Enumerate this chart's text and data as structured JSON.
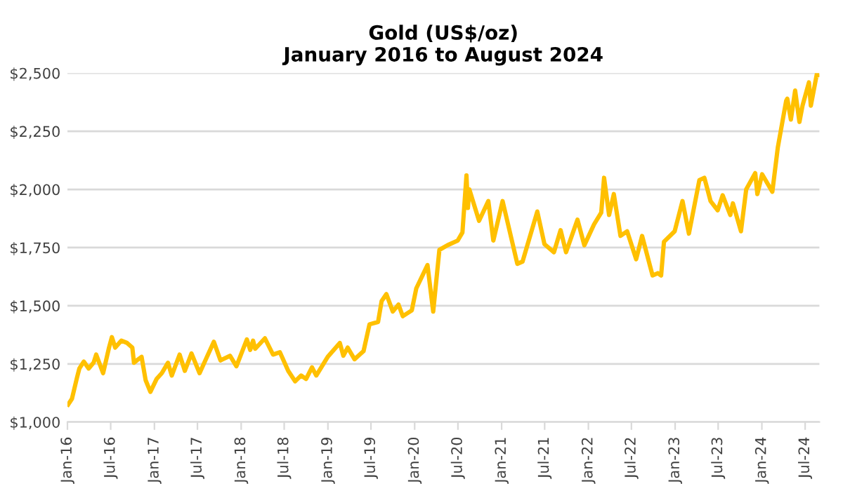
{
  "chart_data": {
    "type": "line",
    "title": "Gold (US$/oz)\nJanuary 2016 to August 2024",
    "x": [
      "2016-01-04",
      "2016-01-20",
      "2016-02-10",
      "2016-02-20",
      "2016-03-10",
      "2016-03-30",
      "2016-04-20",
      "2016-05-01",
      "2016-05-30",
      "2016-06-24",
      "2016-07-06",
      "2016-07-20",
      "2016-08-15",
      "2016-09-08",
      "2016-09-30",
      "2016-10-07",
      "2016-10-25",
      "2016-11-08",
      "2016-11-25",
      "2016-12-15",
      "2017-01-10",
      "2017-02-01",
      "2017-02-27",
      "2017-03-15",
      "2017-04-17",
      "2017-05-09",
      "2017-06-06",
      "2017-07-10",
      "2017-08-10",
      "2017-09-08",
      "2017-10-06",
      "2017-11-15",
      "2017-12-12",
      "2018-01-25",
      "2018-02-08",
      "2018-02-20",
      "2018-03-01",
      "2018-04-11",
      "2018-05-15",
      "2018-06-13",
      "2018-07-18",
      "2018-08-16",
      "2018-09-10",
      "2018-10-01",
      "2018-10-26",
      "2018-11-13",
      "2018-12-31",
      "2019-02-20",
      "2019-03-07",
      "2019-03-25",
      "2019-04-23",
      "2019-05-31",
      "2019-06-25",
      "2019-07-31",
      "2019-08-15",
      "2019-09-04",
      "2019-10-01",
      "2019-10-25",
      "2019-11-12",
      "2019-12-20",
      "2020-01-08",
      "2020-02-24",
      "2020-03-19",
      "2020-04-14",
      "2020-05-18",
      "2020-06-30",
      "2020-07-20",
      "2020-08-06",
      "2020-08-12",
      "2020-08-18",
      "2020-09-28",
      "2020-11-06",
      "2020-11-27",
      "2021-01-05",
      "2021-03-08",
      "2021-03-30",
      "2021-05-31",
      "2021-06-30",
      "2021-08-09",
      "2021-09-06",
      "2021-09-29",
      "2021-11-16",
      "2021-12-15",
      "2022-01-25",
      "2022-02-24",
      "2022-03-08",
      "2022-03-29",
      "2022-04-18",
      "2022-05-16",
      "2022-06-13",
      "2022-07-21",
      "2022-08-15",
      "2022-09-28",
      "2022-10-20",
      "2022-11-03",
      "2022-11-15",
      "2022-12-30",
      "2023-02-01",
      "2023-02-28",
      "2023-04-13",
      "2023-05-04",
      "2023-05-30",
      "2023-06-29",
      "2023-07-20",
      "2023-08-21",
      "2023-09-01",
      "2023-10-05",
      "2023-10-27",
      "2023-12-04",
      "2023-12-13",
      "2024-01-02",
      "2024-02-14",
      "2024-03-08",
      "2024-04-12",
      "2024-04-17",
      "2024-05-02",
      "2024-05-20",
      "2024-06-07",
      "2024-06-20",
      "2024-07-17",
      "2024-07-25",
      "2024-08-20",
      "2024-08-23"
    ],
    "series": [
      {
        "color": "#ffc000",
        "values": [
          1075,
          1100,
          1190,
          1230,
          1260,
          1230,
          1255,
          1290,
          1210,
          1320,
          1365,
          1320,
          1350,
          1340,
          1320,
          1255,
          1270,
          1280,
          1180,
          1130,
          1185,
          1210,
          1255,
          1200,
          1290,
          1220,
          1295,
          1210,
          1280,
          1345,
          1265,
          1285,
          1240,
          1355,
          1310,
          1350,
          1315,
          1360,
          1290,
          1300,
          1220,
          1175,
          1200,
          1185,
          1235,
          1200,
          1280,
          1340,
          1285,
          1320,
          1270,
          1305,
          1420,
          1430,
          1520,
          1550,
          1475,
          1505,
          1455,
          1480,
          1575,
          1675,
          1475,
          1740,
          1760,
          1780,
          1815,
          2060,
          1920,
          2000,
          1865,
          1950,
          1780,
          1950,
          1680,
          1690,
          1905,
          1765,
          1730,
          1825,
          1730,
          1870,
          1760,
          1850,
          1900,
          2050,
          1890,
          1980,
          1800,
          1820,
          1700,
          1800,
          1630,
          1640,
          1630,
          1775,
          1820,
          1950,
          1810,
          2040,
          2050,
          1950,
          1910,
          1975,
          1890,
          1940,
          1820,
          2000,
          2070,
          1980,
          2065,
          1990,
          2180,
          2380,
          2390,
          2300,
          2425,
          2290,
          2360,
          2460,
          2360,
          2500,
          2490
        ]
      }
    ],
    "xlim": [
      "2016-01-01",
      "2024-08-30"
    ],
    "xticks": [
      {
        "value": "2016-01-01",
        "label": "Jan-16"
      },
      {
        "value": "2016-07-01",
        "label": "Jul-16"
      },
      {
        "value": "2017-01-01",
        "label": "Jan-17"
      },
      {
        "value": "2017-07-01",
        "label": "Jul-17"
      },
      {
        "value": "2018-01-01",
        "label": "Jan-18"
      },
      {
        "value": "2018-07-01",
        "label": "Jul-18"
      },
      {
        "value": "2019-01-01",
        "label": "Jan-19"
      },
      {
        "value": "2019-07-01",
        "label": "Jul-19"
      },
      {
        "value": "2020-01-01",
        "label": "Jan-20"
      },
      {
        "value": "2020-07-01",
        "label": "Jul-20"
      },
      {
        "value": "2021-01-01",
        "label": "Jan-21"
      },
      {
        "value": "2021-07-01",
        "label": "Jul-21"
      },
      {
        "value": "2022-01-01",
        "label": "Jan-22"
      },
      {
        "value": "2022-07-01",
        "label": "Jul-22"
      },
      {
        "value": "2023-01-01",
        "label": "Jan-23"
      },
      {
        "value": "2023-07-01",
        "label": "Jul-23"
      },
      {
        "value": "2024-01-01",
        "label": "Jan-24"
      },
      {
        "value": "2024-07-01",
        "label": "Jul-24"
      }
    ],
    "ylim": [
      1000,
      2500
    ],
    "yticks": [
      {
        "value": 1000,
        "label": "$1,000"
      },
      {
        "value": 1250,
        "label": "$1,250"
      },
      {
        "value": 1500,
        "label": "$1,500"
      },
      {
        "value": 1750,
        "label": "$1,750"
      },
      {
        "value": 2000,
        "label": "$2,000"
      },
      {
        "value": 2250,
        "label": "$2,250"
      },
      {
        "value": 2500,
        "label": "$2,500"
      }
    ],
    "grid": "y",
    "line_style": "solid",
    "marker": "none"
  }
}
